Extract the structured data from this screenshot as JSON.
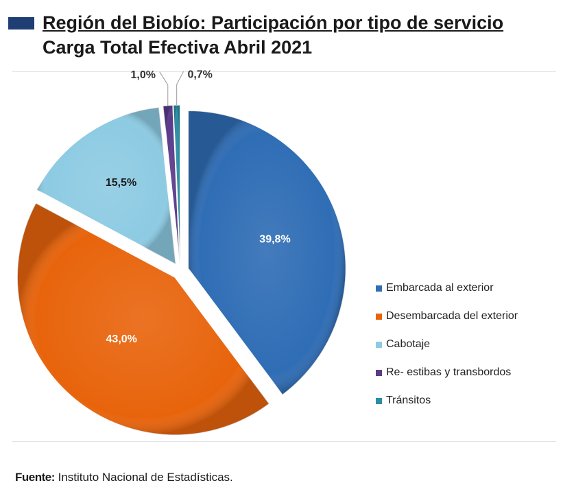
{
  "header": {
    "title": "Región del Biobío:  Participación por tipo de servicio",
    "subtitle": "Carga Total Efectiva Abril  2021"
  },
  "chart_data": {
    "type": "pie",
    "categories": [
      "Embarcada al exterior",
      "Desembarcada del exterior",
      "Cabotaje",
      "Re- estibas y transbordos",
      "Tránsitos"
    ],
    "values": [
      39.8,
      43.0,
      15.5,
      1.0,
      0.7
    ],
    "labels": [
      "39,8%",
      "43,0%",
      "15,5%",
      "1,0%",
      "0,7%"
    ],
    "colors": [
      "#2f6db5",
      "#e8640c",
      "#8dcbe3",
      "#5a3a8a",
      "#2b8ea3"
    ],
    "exploded": true,
    "legend_position": "right"
  },
  "footer": {
    "label": "Fuente:",
    "text": " Instituto Nacional de Estadísticas."
  }
}
